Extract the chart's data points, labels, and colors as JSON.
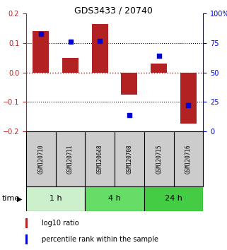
{
  "title": "GDS3433 / 20740",
  "samples": [
    "GSM120710",
    "GSM120711",
    "GSM120648",
    "GSM120708",
    "GSM120715",
    "GSM120716"
  ],
  "log10_ratio": [
    0.14,
    0.05,
    0.165,
    -0.075,
    0.03,
    -0.175
  ],
  "percentile_rank": [
    83,
    76,
    77,
    14,
    64,
    22
  ],
  "bar_color": "#b22222",
  "dot_color": "#0000cc",
  "ylim_left": [
    -0.2,
    0.2
  ],
  "ylim_right": [
    0,
    100
  ],
  "yticks_left": [
    -0.2,
    -0.1,
    0,
    0.1,
    0.2
  ],
  "yticks_right": [
    0,
    25,
    50,
    75,
    100
  ],
  "groups": [
    {
      "label": "1 h",
      "start": 0,
      "end": 2,
      "color": "#ccf0cc"
    },
    {
      "label": "4 h",
      "start": 2,
      "end": 4,
      "color": "#66dd66"
    },
    {
      "label": "24 h",
      "start": 4,
      "end": 6,
      "color": "#44cc44"
    }
  ],
  "time_label": "time",
  "legend_ratio_label": "log10 ratio",
  "legend_pct_label": "percentile rank within the sample",
  "background_color": "#ffffff",
  "zero_line_color": "#cc0000",
  "bar_width": 0.55,
  "xlabels_bg": "#cccccc",
  "tick_fontsize": 7,
  "sample_fontsize": 5.5,
  "title_fontsize": 9
}
